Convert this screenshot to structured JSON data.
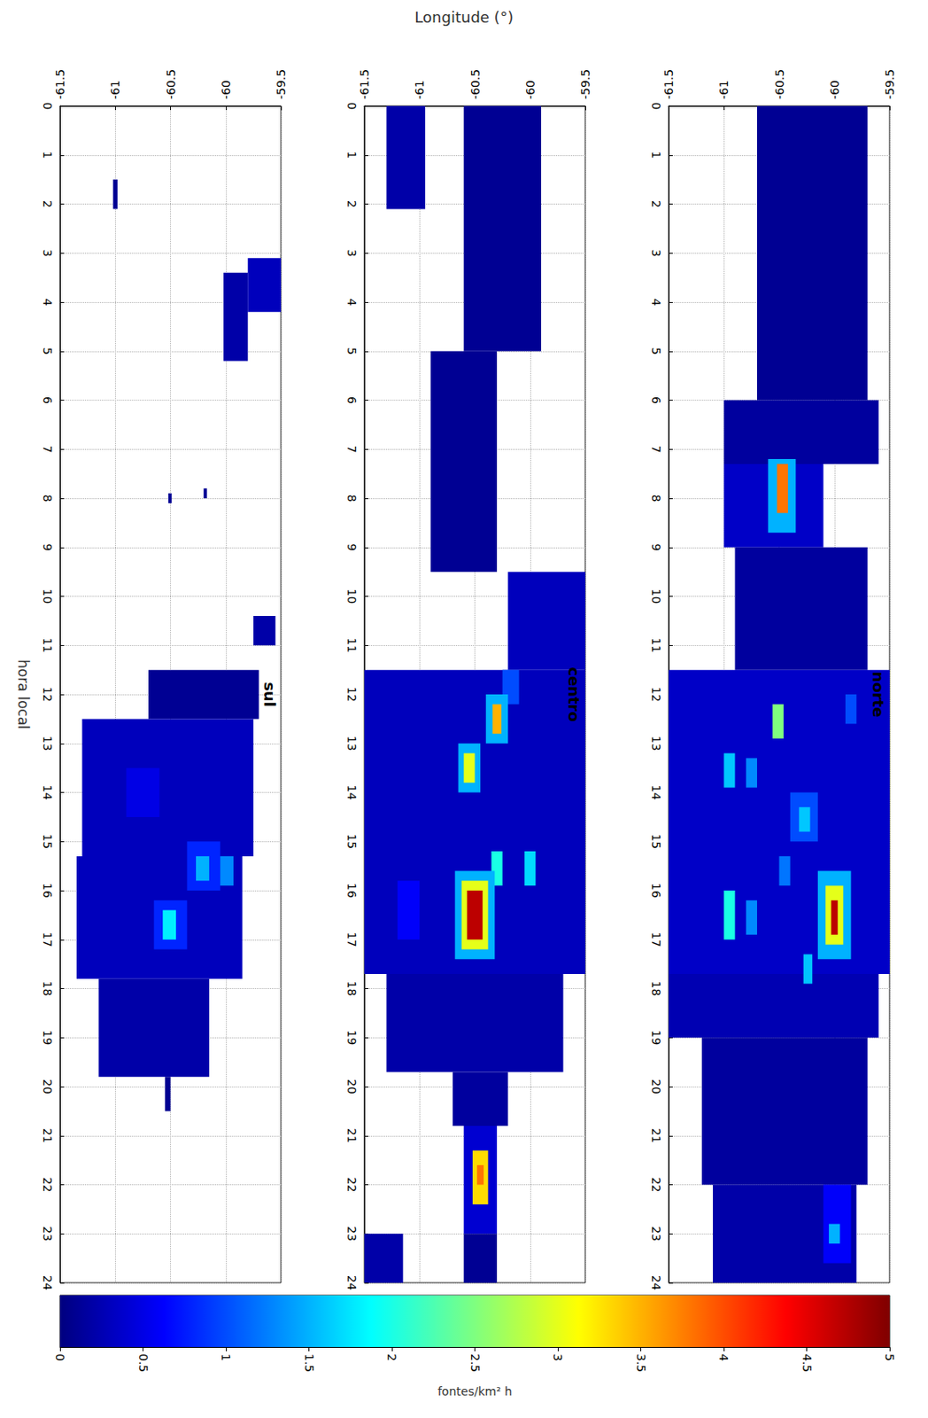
{
  "chart_data": {
    "type": "heatmap",
    "x_label": "Longitude (°)",
    "y_label": "hora local",
    "xlim": [
      -61.5,
      -59.5
    ],
    "xticks": [
      -61.5,
      -61,
      -60.5,
      -60,
      -59.5
    ],
    "ylim": [
      0,
      24
    ],
    "yticks": [
      0,
      1,
      2,
      3,
      4,
      5,
      6,
      7,
      8,
      9,
      10,
      11,
      12,
      13,
      14,
      15,
      16,
      17,
      18,
      19,
      20,
      21,
      22,
      23,
      24
    ],
    "grid": true,
    "panels": [
      {
        "title": "sul",
        "cells": [
          [
            -61.02,
            -60.98,
            1.5,
            2.1,
            0.1
          ],
          [
            -59.8,
            -59.5,
            3.1,
            4.2,
            0.3
          ],
          [
            -60.02,
            -59.8,
            3.4,
            5.2,
            0.2
          ],
          [
            -60.52,
            -60.49,
            7.9,
            8.1,
            0.1
          ],
          [
            -60.2,
            -60.17,
            7.8,
            8.0,
            0.1
          ],
          [
            -59.75,
            -59.55,
            10.4,
            11.0,
            0.2
          ],
          [
            -60.7,
            -59.7,
            11.5,
            12.5,
            0.1
          ],
          [
            -61.3,
            -59.75,
            12.5,
            15.3,
            0.3
          ],
          [
            -61.35,
            -59.85,
            15.3,
            17.8,
            0.3
          ],
          [
            -61.15,
            -60.15,
            17.8,
            19.8,
            0.2
          ],
          [
            -60.55,
            -60.5,
            19.8,
            20.5,
            0.1
          ],
          [
            -60.9,
            -60.6,
            13.5,
            14.5,
            0.5
          ],
          [
            -60.35,
            -60.05,
            15.0,
            16.0,
            0.8
          ],
          [
            -60.27,
            -60.15,
            15.3,
            15.8,
            1.5
          ],
          [
            -60.05,
            -59.93,
            15.3,
            15.9,
            1.3
          ],
          [
            -60.65,
            -60.35,
            16.2,
            17.2,
            0.8
          ],
          [
            -60.57,
            -60.45,
            16.4,
            17.0,
            1.8
          ]
        ]
      },
      {
        "title": "centro",
        "cells": [
          [
            -61.3,
            -60.95,
            0,
            2.1,
            0.2
          ],
          [
            -60.6,
            -59.9,
            0,
            5,
            0.1
          ],
          [
            -60.9,
            -60.3,
            5,
            9.5,
            0.1
          ],
          [
            -60.2,
            -59.5,
            9.5,
            11.5,
            0.3
          ],
          [
            -61.5,
            -59.5,
            11.5,
            17.7,
            0.3
          ],
          [
            -61.3,
            -59.7,
            17.7,
            19.7,
            0.2
          ],
          [
            -60.7,
            -60.2,
            19.7,
            20.8,
            0.15
          ],
          [
            -60.6,
            -60.3,
            20.8,
            23,
            0.4
          ],
          [
            -60.52,
            -60.38,
            21.3,
            22.4,
            3.3
          ],
          [
            -60.48,
            -60.42,
            21.6,
            22.0,
            3.8
          ],
          [
            -61.5,
            -61.15,
            23,
            24,
            0.2
          ],
          [
            -60.6,
            -60.3,
            23,
            24,
            0.1
          ],
          [
            -60.25,
            -60.1,
            11.5,
            12.2,
            1.0
          ],
          [
            -60.4,
            -60.2,
            12.0,
            13.0,
            1.5
          ],
          [
            -60.34,
            -60.26,
            12.2,
            12.8,
            3.5
          ],
          [
            -60.65,
            -60.45,
            13.0,
            14.0,
            1.5
          ],
          [
            -60.6,
            -60.5,
            13.2,
            13.8,
            3.0
          ],
          [
            -60.35,
            -60.25,
            15.2,
            15.9,
            2.0
          ],
          [
            -60.05,
            -59.95,
            15.2,
            15.9,
            1.7
          ],
          [
            -61.2,
            -61.0,
            15.8,
            17.0,
            0.6
          ],
          [
            -60.68,
            -60.32,
            15.6,
            17.4,
            1.5
          ],
          [
            -60.62,
            -60.38,
            15.8,
            17.2,
            3.0
          ],
          [
            -60.57,
            -60.43,
            16.0,
            17.0,
            4.7
          ]
        ]
      },
      {
        "title": "norte",
        "cells": [
          [
            -60.7,
            -59.7,
            0,
            6,
            0.1
          ],
          [
            -61.0,
            -59.6,
            6,
            7.3,
            0.15
          ],
          [
            -61.0,
            -60.1,
            7.3,
            9.0,
            0.35
          ],
          [
            -60.6,
            -60.35,
            7.2,
            8.7,
            1.5
          ],
          [
            -60.52,
            -60.42,
            7.3,
            8.3,
            3.8
          ],
          [
            -60.9,
            -59.7,
            9.0,
            11.5,
            0.15
          ],
          [
            -61.5,
            -59.5,
            11.5,
            17.7,
            0.35
          ],
          [
            -61.5,
            -59.6,
            17.7,
            19.0,
            0.25
          ],
          [
            -61.2,
            -59.7,
            19.0,
            22,
            0.15
          ],
          [
            -61.1,
            -59.8,
            22,
            24,
            0.2
          ],
          [
            -60.1,
            -59.85,
            22,
            23.6,
            0.6
          ],
          [
            -60.05,
            -59.95,
            22.8,
            23.2,
            1.5
          ],
          [
            -60.56,
            -60.46,
            12.2,
            12.9,
            2.5
          ],
          [
            -59.9,
            -59.8,
            12.0,
            12.6,
            1.0
          ],
          [
            -61.0,
            -60.9,
            13.2,
            13.9,
            1.6
          ],
          [
            -60.8,
            -60.7,
            13.3,
            13.9,
            1.3
          ],
          [
            -60.4,
            -60.15,
            14.0,
            15.0,
            1.0
          ],
          [
            -60.32,
            -60.22,
            14.3,
            14.8,
            1.6
          ],
          [
            -60.5,
            -60.4,
            15.3,
            15.9,
            1.2
          ],
          [
            -60.15,
            -59.85,
            15.6,
            17.4,
            1.5
          ],
          [
            -60.08,
            -59.92,
            15.9,
            17.1,
            3.0
          ],
          [
            -60.03,
            -59.97,
            16.2,
            16.9,
            4.7
          ],
          [
            -61.0,
            -60.9,
            16.0,
            17.0,
            2.0
          ],
          [
            -60.8,
            -60.7,
            16.2,
            16.9,
            1.3
          ],
          [
            -60.28,
            -60.2,
            17.3,
            17.9,
            1.6
          ]
        ]
      }
    ],
    "colorbar": {
      "label": "fontes/km² h",
      "range": [
        0,
        5
      ],
      "ticks": [
        0,
        0.5,
        1,
        1.5,
        2,
        2.5,
        3,
        3.5,
        4,
        4.5,
        5
      ]
    }
  }
}
